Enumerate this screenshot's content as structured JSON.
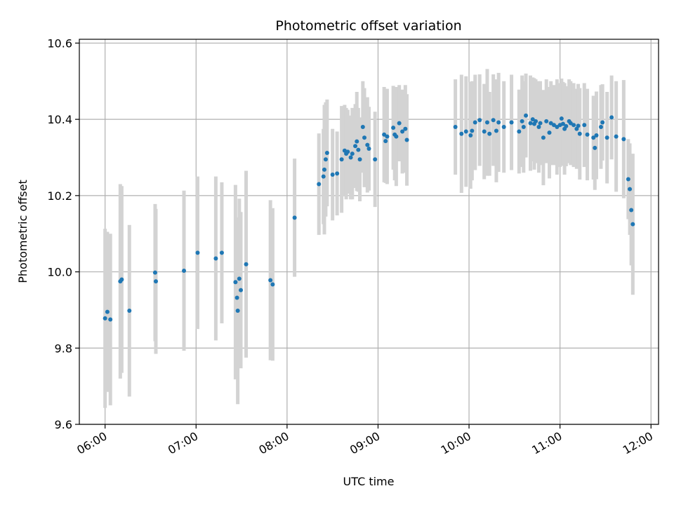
{
  "chart_data": {
    "type": "scatter",
    "title": "Photometric offset variation",
    "xlabel": "UTC time",
    "ylabel": "Photometric offset",
    "x_unit": "UTC time (hours)",
    "xlim": [
      5.717,
      12.083
    ],
    "ylim": [
      9.6,
      10.61
    ],
    "x_ticks": [
      {
        "value": 6,
        "label": "06:00"
      },
      {
        "value": 7,
        "label": "07:00"
      },
      {
        "value": 8,
        "label": "08:00"
      },
      {
        "value": 9,
        "label": "09:00"
      },
      {
        "value": 10,
        "label": "10:00"
      },
      {
        "value": 11,
        "label": "11:00"
      },
      {
        "value": 12,
        "label": "12:00"
      }
    ],
    "y_ticks": [
      {
        "value": 9.6,
        "label": "9.6"
      },
      {
        "value": 9.8,
        "label": "9.8"
      },
      {
        "value": 10.0,
        "label": "10.0"
      },
      {
        "value": 10.2,
        "label": "10.2"
      },
      {
        "value": 10.4,
        "label": "10.4"
      },
      {
        "value": 10.6,
        "label": "10.6"
      }
    ],
    "grid": true,
    "marker_color": "#1f77b4",
    "errorbar_color": "#d3d3d3",
    "points": [
      {
        "x": 6.0,
        "y": 9.878,
        "err": 0.235
      },
      {
        "x": 6.025,
        "y": 9.895,
        "err": 0.21
      },
      {
        "x": 6.058,
        "y": 9.875,
        "err": 0.225
      },
      {
        "x": 6.167,
        "y": 9.975,
        "err": 0.255
      },
      {
        "x": 6.183,
        "y": 9.98,
        "err": 0.245
      },
      {
        "x": 6.267,
        "y": 9.898,
        "err": 0.225
      },
      {
        "x": 6.55,
        "y": 9.998,
        "err": 0.18
      },
      {
        "x": 6.558,
        "y": 9.975,
        "err": 0.19
      },
      {
        "x": 6.867,
        "y": 10.003,
        "err": 0.21
      },
      {
        "x": 7.017,
        "y": 10.05,
        "err": 0.2
      },
      {
        "x": 7.217,
        "y": 10.035,
        "err": 0.215
      },
      {
        "x": 7.283,
        "y": 10.05,
        "err": 0.185
      },
      {
        "x": 7.433,
        "y": 9.973,
        "err": 0.255
      },
      {
        "x": 7.45,
        "y": 9.932,
        "err": 0.2
      },
      {
        "x": 7.458,
        "y": 9.898,
        "err": 0.245
      },
      {
        "x": 7.475,
        "y": 9.982,
        "err": 0.21
      },
      {
        "x": 7.492,
        "y": 9.952,
        "err": 0.205
      },
      {
        "x": 7.55,
        "y": 10.02,
        "err": 0.245
      },
      {
        "x": 7.817,
        "y": 9.978,
        "err": 0.21
      },
      {
        "x": 7.842,
        "y": 9.967,
        "err": 0.2
      },
      {
        "x": 8.083,
        "y": 10.142,
        "err": 0.155
      },
      {
        "x": 8.35,
        "y": 10.23,
        "err": 0.133
      },
      {
        "x": 8.4,
        "y": 10.25,
        "err": 0.125
      },
      {
        "x": 8.41,
        "y": 10.268,
        "err": 0.17
      },
      {
        "x": 8.425,
        "y": 10.295,
        "err": 0.15
      },
      {
        "x": 8.44,
        "y": 10.312,
        "err": 0.14
      },
      {
        "x": 8.5,
        "y": 10.255,
        "err": 0.12
      },
      {
        "x": 8.55,
        "y": 10.258,
        "err": 0.11
      },
      {
        "x": 8.6,
        "y": 10.295,
        "err": 0.14
      },
      {
        "x": 8.633,
        "y": 10.318,
        "err": 0.12
      },
      {
        "x": 8.65,
        "y": 10.31,
        "err": 0.12
      },
      {
        "x": 8.667,
        "y": 10.315,
        "err": 0.11
      },
      {
        "x": 8.7,
        "y": 10.3,
        "err": 0.11
      },
      {
        "x": 8.717,
        "y": 10.31,
        "err": 0.12
      },
      {
        "x": 8.75,
        "y": 10.33,
        "err": 0.11
      },
      {
        "x": 8.767,
        "y": 10.342,
        "err": 0.13
      },
      {
        "x": 8.783,
        "y": 10.32,
        "err": 0.11
      },
      {
        "x": 8.8,
        "y": 10.295,
        "err": 0.11
      },
      {
        "x": 8.833,
        "y": 10.38,
        "err": 0.12
      },
      {
        "x": 8.85,
        "y": 10.352,
        "err": 0.13
      },
      {
        "x": 8.883,
        "y": 10.333,
        "err": 0.125
      },
      {
        "x": 8.9,
        "y": 10.323,
        "err": 0.11
      },
      {
        "x": 8.967,
        "y": 10.295,
        "err": 0.125
      },
      {
        "x": 9.067,
        "y": 10.36,
        "err": 0.125
      },
      {
        "x": 9.083,
        "y": 10.343,
        "err": 0.11
      },
      {
        "x": 9.1,
        "y": 10.355,
        "err": 0.125
      },
      {
        "x": 9.167,
        "y": 10.378,
        "err": 0.11
      },
      {
        "x": 9.183,
        "y": 10.36,
        "err": 0.12
      },
      {
        "x": 9.2,
        "y": 10.355,
        "err": 0.13
      },
      {
        "x": 9.233,
        "y": 10.39,
        "err": 0.1
      },
      {
        "x": 9.267,
        "y": 10.368,
        "err": 0.11
      },
      {
        "x": 9.3,
        "y": 10.375,
        "err": 0.115
      },
      {
        "x": 9.317,
        "y": 10.346,
        "err": 0.12
      },
      {
        "x": 9.85,
        "y": 10.38,
        "err": 0.125
      },
      {
        "x": 9.917,
        "y": 10.362,
        "err": 0.155
      },
      {
        "x": 9.967,
        "y": 10.368,
        "err": 0.145
      },
      {
        "x": 10.017,
        "y": 10.358,
        "err": 0.14
      },
      {
        "x": 10.033,
        "y": 10.37,
        "err": 0.13
      },
      {
        "x": 10.067,
        "y": 10.392,
        "err": 0.125
      },
      {
        "x": 10.117,
        "y": 10.398,
        "err": 0.12
      },
      {
        "x": 10.167,
        "y": 10.368,
        "err": 0.125
      },
      {
        "x": 10.2,
        "y": 10.392,
        "err": 0.14
      },
      {
        "x": 10.225,
        "y": 10.362,
        "err": 0.11
      },
      {
        "x": 10.267,
        "y": 10.398,
        "err": 0.12
      },
      {
        "x": 10.3,
        "y": 10.37,
        "err": 0.135
      },
      {
        "x": 10.325,
        "y": 10.392,
        "err": 0.13
      },
      {
        "x": 10.383,
        "y": 10.38,
        "err": 0.12
      },
      {
        "x": 10.467,
        "y": 10.392,
        "err": 0.125
      },
      {
        "x": 10.55,
        "y": 10.368,
        "err": 0.11
      },
      {
        "x": 10.583,
        "y": 10.395,
        "err": 0.12
      },
      {
        "x": 10.6,
        "y": 10.38,
        "err": 0.12
      },
      {
        "x": 10.625,
        "y": 10.41,
        "err": 0.11
      },
      {
        "x": 10.675,
        "y": 10.39,
        "err": 0.125
      },
      {
        "x": 10.7,
        "y": 10.4,
        "err": 0.11
      },
      {
        "x": 10.717,
        "y": 10.388,
        "err": 0.12
      },
      {
        "x": 10.733,
        "y": 10.395,
        "err": 0.11
      },
      {
        "x": 10.767,
        "y": 10.38,
        "err": 0.12
      },
      {
        "x": 10.783,
        "y": 10.39,
        "err": 0.11
      },
      {
        "x": 10.817,
        "y": 10.352,
        "err": 0.125
      },
      {
        "x": 10.85,
        "y": 10.395,
        "err": 0.11
      },
      {
        "x": 10.883,
        "y": 10.365,
        "err": 0.12
      },
      {
        "x": 10.9,
        "y": 10.39,
        "err": 0.11
      },
      {
        "x": 10.933,
        "y": 10.385,
        "err": 0.105
      },
      {
        "x": 10.967,
        "y": 10.38,
        "err": 0.125
      },
      {
        "x": 11.0,
        "y": 10.385,
        "err": 0.11
      },
      {
        "x": 11.017,
        "y": 10.402,
        "err": 0.105
      },
      {
        "x": 11.033,
        "y": 10.388,
        "err": 0.11
      },
      {
        "x": 11.05,
        "y": 10.375,
        "err": 0.12
      },
      {
        "x": 11.067,
        "y": 10.382,
        "err": 0.105
      },
      {
        "x": 11.1,
        "y": 10.395,
        "err": 0.11
      },
      {
        "x": 11.117,
        "y": 10.39,
        "err": 0.11
      },
      {
        "x": 11.15,
        "y": 10.385,
        "err": 0.11
      },
      {
        "x": 11.183,
        "y": 10.375,
        "err": 0.105
      },
      {
        "x": 11.2,
        "y": 10.383,
        "err": 0.11
      },
      {
        "x": 11.217,
        "y": 10.362,
        "err": 0.12
      },
      {
        "x": 11.267,
        "y": 10.385,
        "err": 0.11
      },
      {
        "x": 11.3,
        "y": 10.36,
        "err": 0.12
      },
      {
        "x": 11.367,
        "y": 10.352,
        "err": 0.11
      },
      {
        "x": 11.383,
        "y": 10.325,
        "err": 0.11
      },
      {
        "x": 11.4,
        "y": 10.358,
        "err": 0.115
      },
      {
        "x": 11.45,
        "y": 10.38,
        "err": 0.11
      },
      {
        "x": 11.467,
        "y": 10.392,
        "err": 0.1
      },
      {
        "x": 11.517,
        "y": 10.352,
        "err": 0.12
      },
      {
        "x": 11.567,
        "y": 10.405,
        "err": 0.11
      },
      {
        "x": 11.617,
        "y": 10.355,
        "err": 0.145
      },
      {
        "x": 11.7,
        "y": 10.348,
        "err": 0.155
      },
      {
        "x": 11.75,
        "y": 10.243,
        "err": 0.105
      },
      {
        "x": 11.767,
        "y": 10.217,
        "err": 0.12
      },
      {
        "x": 11.783,
        "y": 10.162,
        "err": 0.145
      },
      {
        "x": 11.8,
        "y": 10.125,
        "err": 0.185
      }
    ]
  }
}
